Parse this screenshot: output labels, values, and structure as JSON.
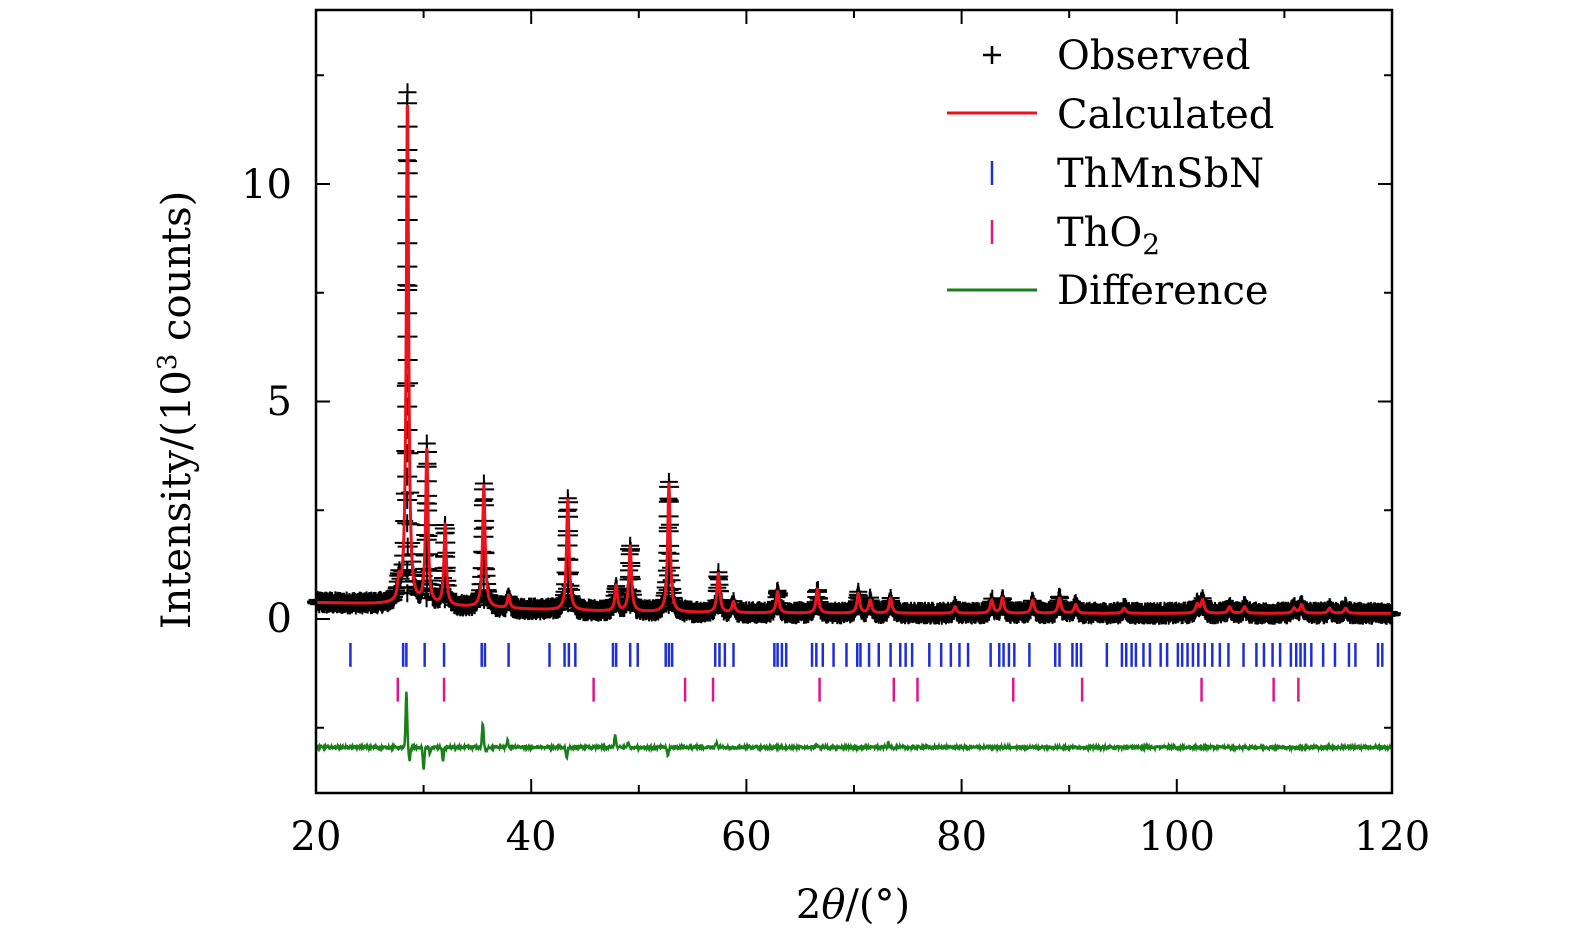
{
  "chart_data": {
    "type": "line",
    "title": "",
    "xlabel_prefix": "2",
    "xlabel_theta": "θ",
    "xlabel_suffix": "/(°)",
    "ylabel_prefix": "Intensity/(10",
    "ylabel_sup": "3",
    "ylabel_suffix": " counts)",
    "xlim": [
      20,
      120
    ],
    "ylim": [
      -4,
      14
    ],
    "xticks": [
      20,
      40,
      60,
      80,
      100,
      120
    ],
    "xtick_labels": [
      "20",
      "40",
      "60",
      "80",
      "100",
      "120"
    ],
    "yticks": [
      0,
      5,
      10
    ],
    "ytick_labels": [
      "0",
      "5",
      "10"
    ],
    "legend_position": "top-right",
    "legend": {
      "observed": "Observed",
      "calculated": "Calculated",
      "phase1": "ThMnSbN",
      "phase2_main": "ThO",
      "phase2_sub": "2",
      "difference": "Difference"
    },
    "colors": {
      "observed": "#000000",
      "calculated": "#e8141e",
      "phase1": "#1f2fd6",
      "phase2": "#e0168a",
      "difference": "#198019"
    },
    "background": {
      "start": 0.42,
      "end": 0.13,
      "decay_center": 34,
      "decay_width": 8
    },
    "peaks": [
      {
        "x": 27.7,
        "h": 0.45,
        "w": 0.13
      },
      {
        "x": 28.5,
        "h": 11.7,
        "w": 0.13
      },
      {
        "x": 30.3,
        "h": 3.6,
        "w": 0.13
      },
      {
        "x": 32.0,
        "h": 1.85,
        "w": 0.13
      },
      {
        "x": 35.6,
        "h": 2.8,
        "w": 0.14
      },
      {
        "x": 37.9,
        "h": 0.3,
        "w": 0.13
      },
      {
        "x": 43.4,
        "h": 2.55,
        "w": 0.14
      },
      {
        "x": 47.9,
        "h": 0.6,
        "w": 0.14
      },
      {
        "x": 49.2,
        "h": 1.5,
        "w": 0.14
      },
      {
        "x": 52.8,
        "h": 2.95,
        "w": 0.14
      },
      {
        "x": 57.4,
        "h": 0.9,
        "w": 0.15
      },
      {
        "x": 58.8,
        "h": 0.25,
        "w": 0.15
      },
      {
        "x": 62.9,
        "h": 0.5,
        "w": 0.15
      },
      {
        "x": 66.6,
        "h": 0.55,
        "w": 0.15
      },
      {
        "x": 70.4,
        "h": 0.45,
        "w": 0.15
      },
      {
        "x": 71.5,
        "h": 0.3,
        "w": 0.15
      },
      {
        "x": 73.4,
        "h": 0.35,
        "w": 0.15
      },
      {
        "x": 79.4,
        "h": 0.15,
        "w": 0.15
      },
      {
        "x": 82.8,
        "h": 0.3,
        "w": 0.16
      },
      {
        "x": 83.8,
        "h": 0.35,
        "w": 0.16
      },
      {
        "x": 86.6,
        "h": 0.3,
        "w": 0.16
      },
      {
        "x": 89.1,
        "h": 0.35,
        "w": 0.16
      },
      {
        "x": 90.6,
        "h": 0.2,
        "w": 0.16
      },
      {
        "x": 95.1,
        "h": 0.12,
        "w": 0.17
      },
      {
        "x": 101.9,
        "h": 0.2,
        "w": 0.17
      },
      {
        "x": 102.4,
        "h": 0.3,
        "w": 0.17
      },
      {
        "x": 104.9,
        "h": 0.15,
        "w": 0.17
      },
      {
        "x": 106.3,
        "h": 0.15,
        "w": 0.17
      },
      {
        "x": 110.9,
        "h": 0.12,
        "w": 0.17
      },
      {
        "x": 111.6,
        "h": 0.2,
        "w": 0.17
      },
      {
        "x": 114.2,
        "h": 0.12,
        "w": 0.17
      },
      {
        "x": 115.7,
        "h": 0.12,
        "w": 0.17
      }
    ],
    "difference_offset": -2.95,
    "difference_features": [
      {
        "x": 28.4,
        "h": 1.25
      },
      {
        "x": 28.7,
        "h": -0.3
      },
      {
        "x": 30.0,
        "h": -0.5
      },
      {
        "x": 30.6,
        "h": -0.15
      },
      {
        "x": 31.8,
        "h": -0.3
      },
      {
        "x": 35.5,
        "h": 0.55
      },
      {
        "x": 35.8,
        "h": -0.1
      },
      {
        "x": 37.8,
        "h": 0.15
      },
      {
        "x": 43.3,
        "h": -0.25
      },
      {
        "x": 47.8,
        "h": 0.3
      },
      {
        "x": 49.0,
        "h": 0.12
      },
      {
        "x": 52.7,
        "h": -0.2
      },
      {
        "x": 57.2,
        "h": 0.1
      },
      {
        "x": 66.5,
        "h": 0.08
      },
      {
        "x": 73.2,
        "h": 0.1
      }
    ],
    "phase1_reflections": [
      23.2,
      28.1,
      28.4,
      30.1,
      31.9,
      35.4,
      35.7,
      37.9,
      41.7,
      43.1,
      43.5,
      44.1,
      47.6,
      47.9,
      49.2,
      49.9,
      52.5,
      52.8,
      53.1,
      57.1,
      57.5,
      58.0,
      58.8,
      62.6,
      62.9,
      63.3,
      63.7,
      66.1,
      66.5,
      67.1,
      68.1,
      69.3,
      70.3,
      70.6,
      71.4,
      72.3,
      73.4,
      74.3,
      74.8,
      75.4,
      77.0,
      78.1,
      79.0,
      79.8,
      80.6,
      82.7,
      83.5,
      83.9,
      84.4,
      84.9,
      86.3,
      88.7,
      89.1,
      90.3,
      90.7,
      91.1,
      93.5,
      94.9,
      95.3,
      95.8,
      96.2,
      96.9,
      97.5,
      98.5,
      99.1,
      100.1,
      100.5,
      101.0,
      101.5,
      102.0,
      102.6,
      103.3,
      104.0,
      104.8,
      106.2,
      107.4,
      108.1,
      108.9,
      109.6,
      110.6,
      111.1,
      111.5,
      111.9,
      112.5,
      113.6,
      114.7,
      116.0,
      116.6,
      118.7,
      119.1
    ],
    "phase2_reflections": [
      27.6,
      31.9,
      45.8,
      54.3,
      56.9,
      66.8,
      73.7,
      75.9,
      84.8,
      91.2,
      102.3,
      109.0,
      111.3
    ]
  }
}
